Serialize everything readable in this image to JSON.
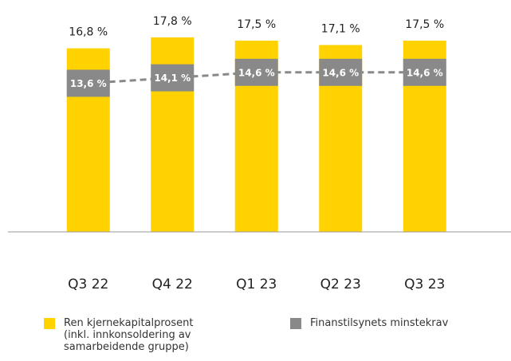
{
  "chart_data": {
    "type": "bar_line",
    "categories": [
      "Q3 22",
      "Q4 22",
      "Q1 23",
      "Q2 23",
      "Q3 23"
    ],
    "series": [
      {
        "name": "Ren kjernekapitalprosent (inkl. innkonsoldering av samarbeidende gruppe)",
        "color": "#ffd200",
        "values": [
          16.8,
          17.8,
          17.5,
          17.1,
          17.5
        ],
        "value_labels": [
          "16,8 %",
          "17,8 %",
          "17,5 %",
          "17,1 %",
          "17,5 %"
        ]
      },
      {
        "name": "Finanstilsynets minstekrav",
        "color": "#898989",
        "values": [
          13.6,
          14.1,
          14.6,
          14.6,
          14.6
        ],
        "value_labels": [
          "13,6 %",
          "14,1 %",
          "14,6 %",
          "14,6 %",
          "14,6 %"
        ]
      }
    ],
    "ylim": [
      0,
      21
    ]
  }
}
